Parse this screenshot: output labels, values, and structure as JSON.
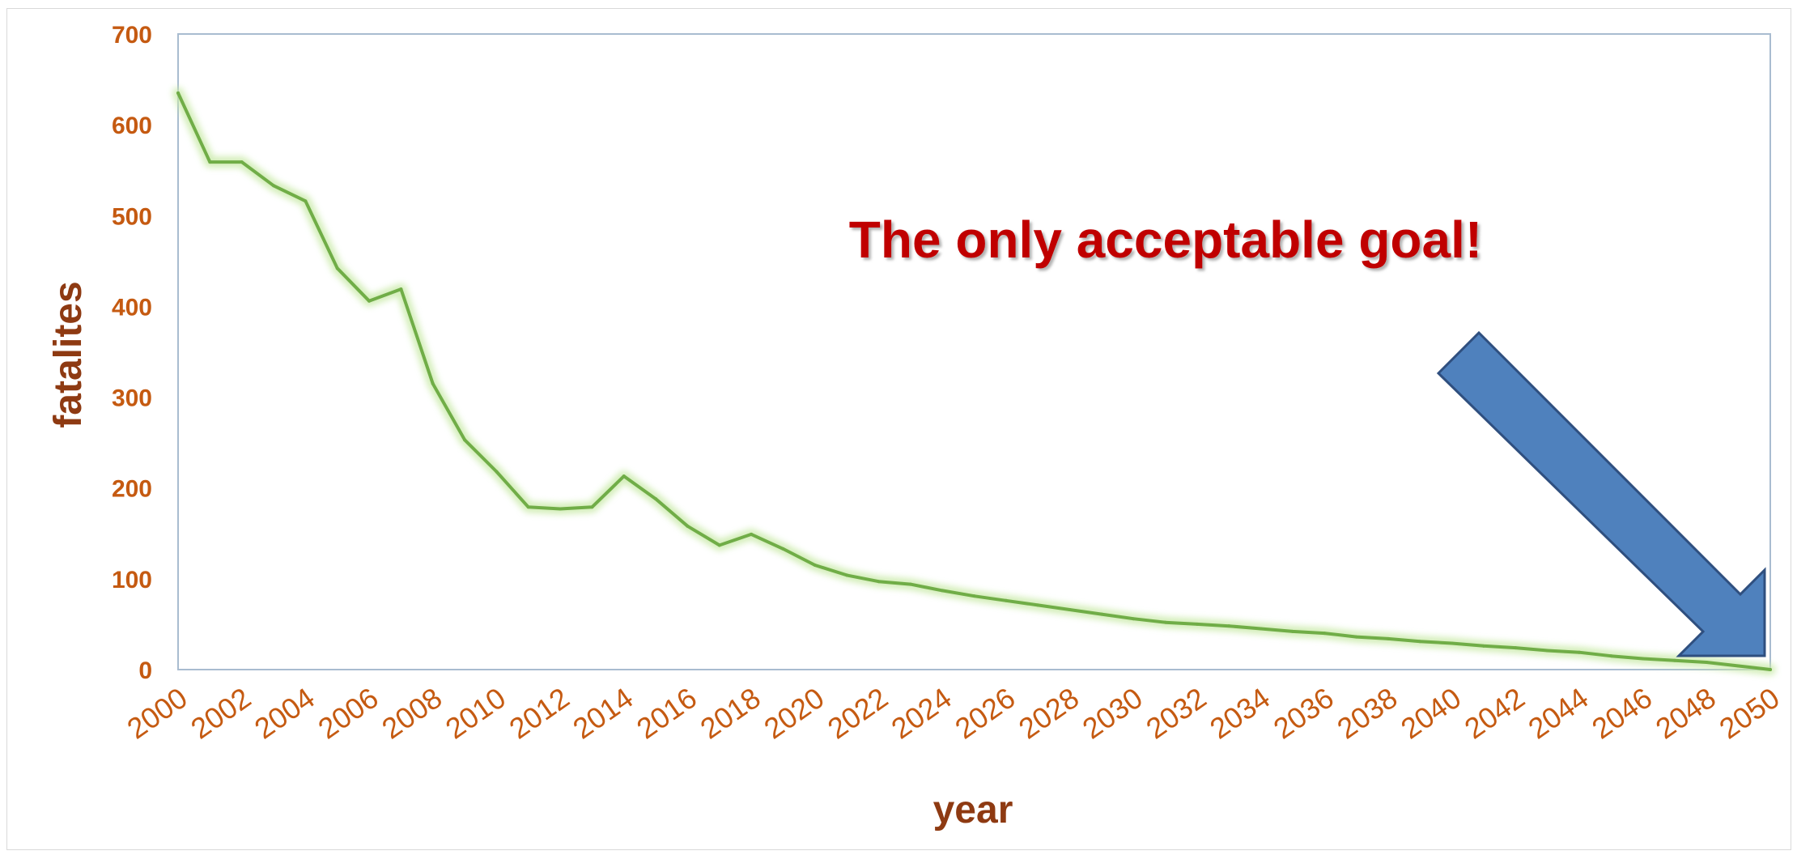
{
  "chart_data": {
    "type": "line",
    "xlabel": "year",
    "ylabel": "fatalites",
    "ylim": [
      0,
      700
    ],
    "xlim": [
      2000,
      2050
    ],
    "yticks": [
      "0",
      "100",
      "200",
      "300",
      "400",
      "500",
      "600",
      "700"
    ],
    "xticks": [
      "2000",
      "2002",
      "2004",
      "2006",
      "2008",
      "2010",
      "2012",
      "2014",
      "2016",
      "2018",
      "2020",
      "2022",
      "2024",
      "2026",
      "2028",
      "2030",
      "2032",
      "2034",
      "2036",
      "2038",
      "2040",
      "2042",
      "2044",
      "2046",
      "2048",
      "2050"
    ],
    "grid": false,
    "legend": "none",
    "annotation": "The only acceptable goal!",
    "series": [
      {
        "color": "#70ad47",
        "x": [
          2000,
          2001,
          2002,
          2003,
          2004,
          2005,
          2006,
          2007,
          2008,
          2009,
          2010,
          2011,
          2012,
          2013,
          2014,
          2015,
          2016,
          2017,
          2018,
          2019,
          2020,
          2021,
          2022,
          2023,
          2024,
          2025,
          2026,
          2027,
          2028,
          2029,
          2030,
          2031,
          2032,
          2033,
          2034,
          2035,
          2036,
          2037,
          2038,
          2039,
          2040,
          2041,
          2042,
          2043,
          2044,
          2045,
          2046,
          2047,
          2048,
          2049,
          2050
        ],
        "y": [
          635,
          559,
          559,
          533,
          516,
          442,
          406,
          419,
          315,
          253,
          218,
          179,
          177,
          179,
          213,
          188,
          158,
          137,
          149,
          133,
          115,
          104,
          97,
          94,
          87,
          81,
          76,
          71,
          66,
          61,
          56,
          52,
          50,
          48,
          45,
          42,
          40,
          36,
          34,
          31,
          29,
          26,
          24,
          21,
          19,
          15,
          12,
          10,
          8,
          4,
          0
        ]
      }
    ]
  },
  "colors": {
    "line": "#70ad47",
    "line_glow": "#c9eaa8",
    "tick_text": "#c55a11",
    "axis_title": "#8e3a12",
    "annotation": "#c00000",
    "arrow_fill": "#4f81bd",
    "arrow_stroke": "#2f4f7f",
    "plot_border": "#a9bcd0"
  },
  "icons": {
    "arrow": "down-right-arrow"
  }
}
